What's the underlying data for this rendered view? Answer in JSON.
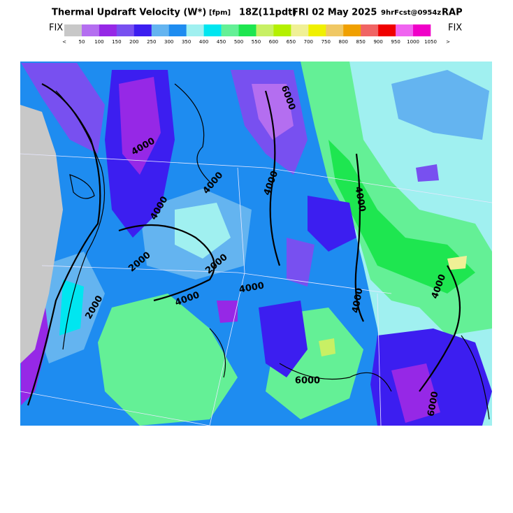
{
  "header": {
    "title": "Thermal Updraft Velocity (W*)",
    "units": "[fpm]",
    "time": "18Z(11pdt)",
    "date": "FRI 02 May 2025",
    "forecast": "9hrFcst@0954z",
    "model": "RAP"
  },
  "colorbar": {
    "left_label": "FIX",
    "right_label": "FIX",
    "colors": [
      "#c8c8c8",
      "#b46ef0",
      "#9628e6",
      "#7850f0",
      "#3c1ef0",
      "#64b4f0",
      "#1e8cf0",
      "#a0f0f0",
      "#00e6f0",
      "#64f096",
      "#1ee650",
      "#c8f064",
      "#b4f000",
      "#f0f096",
      "#f0f000",
      "#f0c864",
      "#f0a000",
      "#f06464",
      "#f00000",
      "#f064f0",
      "#f000c8"
    ],
    "labels": [
      "<",
      "50",
      "100",
      "150",
      "200",
      "250",
      "300",
      "350",
      "400",
      "450",
      "500",
      "550",
      "600",
      "650",
      "700",
      "750",
      "800",
      "850",
      "900",
      "950",
      "1000",
      "1050",
      ">"
    ]
  },
  "map": {
    "contour_labels": [
      "4000",
      "4000",
      "4000",
      "2000",
      "2000",
      "4000",
      "2000",
      "4000",
      "4000",
      "6000",
      "4000",
      "4000",
      "6000",
      "4000",
      "6000"
    ]
  }
}
